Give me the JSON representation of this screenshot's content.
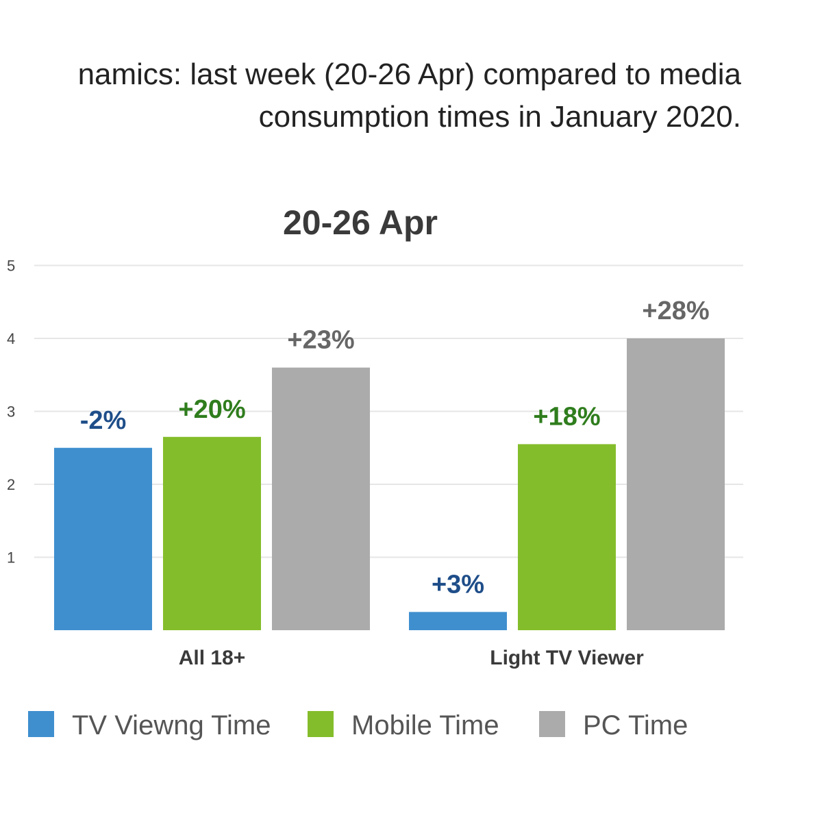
{
  "caption": {
    "line1": "namics: last week (20-26 Apr) compared to media",
    "line2": "consumption times in January 2020."
  },
  "chart_data": {
    "type": "bar",
    "title": "20-26 Apr",
    "categories": [
      "All 18+",
      "Light TV Viewer"
    ],
    "ylim": [
      0,
      5
    ],
    "yticks": [
      1,
      2,
      3,
      4,
      5
    ],
    "grid": true,
    "legend_position": "bottom",
    "series": [
      {
        "name": "TV Viewng Time",
        "color": "#3f8fcf",
        "label_color": "#1f4e89",
        "values": [
          2.5,
          0.25
        ],
        "labels": [
          "-2%",
          "+3%"
        ]
      },
      {
        "name": "Mobile Time",
        "color": "#84bd2b",
        "label_color": "#2f7d1d",
        "values": [
          2.65,
          2.55
        ],
        "labels": [
          "+20%",
          "+18%"
        ]
      },
      {
        "name": "PC Time",
        "color": "#ababab",
        "label_color": "#666666",
        "values": [
          3.6,
          4.0
        ],
        "labels": [
          "+23%",
          "+28%"
        ]
      }
    ]
  }
}
